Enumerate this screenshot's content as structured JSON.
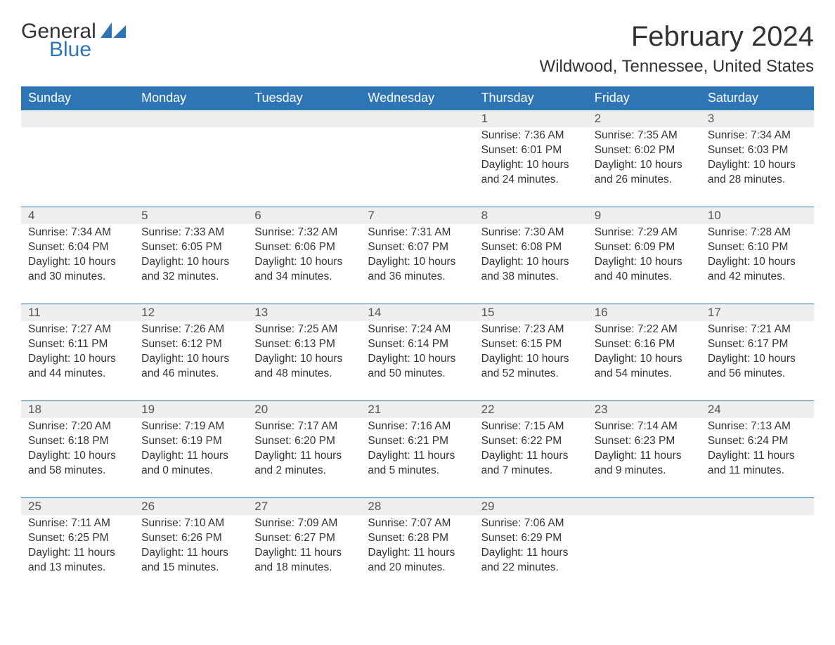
{
  "brand": {
    "word1": "General",
    "word2": "Blue"
  },
  "title": "February 2024",
  "location": "Wildwood, Tennessee, United States",
  "colors": {
    "header_bg": "#2e75b6",
    "header_text": "#ffffff",
    "daynum_bg": "#eeeeee",
    "daynum_border": "#2e75b6",
    "body_text": "#333333",
    "logo_blue": "#2e75b6",
    "page_bg": "#ffffff"
  },
  "type": "table",
  "columns": [
    "Sunday",
    "Monday",
    "Tuesday",
    "Wednesday",
    "Thursday",
    "Friday",
    "Saturday"
  ],
  "weeks": [
    [
      null,
      null,
      null,
      null,
      {
        "day": "1",
        "sunrise": "Sunrise: 7:36 AM",
        "sunset": "Sunset: 6:01 PM",
        "daylight1": "Daylight: 10 hours",
        "daylight2": "and 24 minutes."
      },
      {
        "day": "2",
        "sunrise": "Sunrise: 7:35 AM",
        "sunset": "Sunset: 6:02 PM",
        "daylight1": "Daylight: 10 hours",
        "daylight2": "and 26 minutes."
      },
      {
        "day": "3",
        "sunrise": "Sunrise: 7:34 AM",
        "sunset": "Sunset: 6:03 PM",
        "daylight1": "Daylight: 10 hours",
        "daylight2": "and 28 minutes."
      }
    ],
    [
      {
        "day": "4",
        "sunrise": "Sunrise: 7:34 AM",
        "sunset": "Sunset: 6:04 PM",
        "daylight1": "Daylight: 10 hours",
        "daylight2": "and 30 minutes."
      },
      {
        "day": "5",
        "sunrise": "Sunrise: 7:33 AM",
        "sunset": "Sunset: 6:05 PM",
        "daylight1": "Daylight: 10 hours",
        "daylight2": "and 32 minutes."
      },
      {
        "day": "6",
        "sunrise": "Sunrise: 7:32 AM",
        "sunset": "Sunset: 6:06 PM",
        "daylight1": "Daylight: 10 hours",
        "daylight2": "and 34 minutes."
      },
      {
        "day": "7",
        "sunrise": "Sunrise: 7:31 AM",
        "sunset": "Sunset: 6:07 PM",
        "daylight1": "Daylight: 10 hours",
        "daylight2": "and 36 minutes."
      },
      {
        "day": "8",
        "sunrise": "Sunrise: 7:30 AM",
        "sunset": "Sunset: 6:08 PM",
        "daylight1": "Daylight: 10 hours",
        "daylight2": "and 38 minutes."
      },
      {
        "day": "9",
        "sunrise": "Sunrise: 7:29 AM",
        "sunset": "Sunset: 6:09 PM",
        "daylight1": "Daylight: 10 hours",
        "daylight2": "and 40 minutes."
      },
      {
        "day": "10",
        "sunrise": "Sunrise: 7:28 AM",
        "sunset": "Sunset: 6:10 PM",
        "daylight1": "Daylight: 10 hours",
        "daylight2": "and 42 minutes."
      }
    ],
    [
      {
        "day": "11",
        "sunrise": "Sunrise: 7:27 AM",
        "sunset": "Sunset: 6:11 PM",
        "daylight1": "Daylight: 10 hours",
        "daylight2": "and 44 minutes."
      },
      {
        "day": "12",
        "sunrise": "Sunrise: 7:26 AM",
        "sunset": "Sunset: 6:12 PM",
        "daylight1": "Daylight: 10 hours",
        "daylight2": "and 46 minutes."
      },
      {
        "day": "13",
        "sunrise": "Sunrise: 7:25 AM",
        "sunset": "Sunset: 6:13 PM",
        "daylight1": "Daylight: 10 hours",
        "daylight2": "and 48 minutes."
      },
      {
        "day": "14",
        "sunrise": "Sunrise: 7:24 AM",
        "sunset": "Sunset: 6:14 PM",
        "daylight1": "Daylight: 10 hours",
        "daylight2": "and 50 minutes."
      },
      {
        "day": "15",
        "sunrise": "Sunrise: 7:23 AM",
        "sunset": "Sunset: 6:15 PM",
        "daylight1": "Daylight: 10 hours",
        "daylight2": "and 52 minutes."
      },
      {
        "day": "16",
        "sunrise": "Sunrise: 7:22 AM",
        "sunset": "Sunset: 6:16 PM",
        "daylight1": "Daylight: 10 hours",
        "daylight2": "and 54 minutes."
      },
      {
        "day": "17",
        "sunrise": "Sunrise: 7:21 AM",
        "sunset": "Sunset: 6:17 PM",
        "daylight1": "Daylight: 10 hours",
        "daylight2": "and 56 minutes."
      }
    ],
    [
      {
        "day": "18",
        "sunrise": "Sunrise: 7:20 AM",
        "sunset": "Sunset: 6:18 PM",
        "daylight1": "Daylight: 10 hours",
        "daylight2": "and 58 minutes."
      },
      {
        "day": "19",
        "sunrise": "Sunrise: 7:19 AM",
        "sunset": "Sunset: 6:19 PM",
        "daylight1": "Daylight: 11 hours",
        "daylight2": "and 0 minutes."
      },
      {
        "day": "20",
        "sunrise": "Sunrise: 7:17 AM",
        "sunset": "Sunset: 6:20 PM",
        "daylight1": "Daylight: 11 hours",
        "daylight2": "and 2 minutes."
      },
      {
        "day": "21",
        "sunrise": "Sunrise: 7:16 AM",
        "sunset": "Sunset: 6:21 PM",
        "daylight1": "Daylight: 11 hours",
        "daylight2": "and 5 minutes."
      },
      {
        "day": "22",
        "sunrise": "Sunrise: 7:15 AM",
        "sunset": "Sunset: 6:22 PM",
        "daylight1": "Daylight: 11 hours",
        "daylight2": "and 7 minutes."
      },
      {
        "day": "23",
        "sunrise": "Sunrise: 7:14 AM",
        "sunset": "Sunset: 6:23 PM",
        "daylight1": "Daylight: 11 hours",
        "daylight2": "and 9 minutes."
      },
      {
        "day": "24",
        "sunrise": "Sunrise: 7:13 AM",
        "sunset": "Sunset: 6:24 PM",
        "daylight1": "Daylight: 11 hours",
        "daylight2": "and 11 minutes."
      }
    ],
    [
      {
        "day": "25",
        "sunrise": "Sunrise: 7:11 AM",
        "sunset": "Sunset: 6:25 PM",
        "daylight1": "Daylight: 11 hours",
        "daylight2": "and 13 minutes."
      },
      {
        "day": "26",
        "sunrise": "Sunrise: 7:10 AM",
        "sunset": "Sunset: 6:26 PM",
        "daylight1": "Daylight: 11 hours",
        "daylight2": "and 15 minutes."
      },
      {
        "day": "27",
        "sunrise": "Sunrise: 7:09 AM",
        "sunset": "Sunset: 6:27 PM",
        "daylight1": "Daylight: 11 hours",
        "daylight2": "and 18 minutes."
      },
      {
        "day": "28",
        "sunrise": "Sunrise: 7:07 AM",
        "sunset": "Sunset: 6:28 PM",
        "daylight1": "Daylight: 11 hours",
        "daylight2": "and 20 minutes."
      },
      {
        "day": "29",
        "sunrise": "Sunrise: 7:06 AM",
        "sunset": "Sunset: 6:29 PM",
        "daylight1": "Daylight: 11 hours",
        "daylight2": "and 22 minutes."
      },
      null,
      null
    ]
  ]
}
